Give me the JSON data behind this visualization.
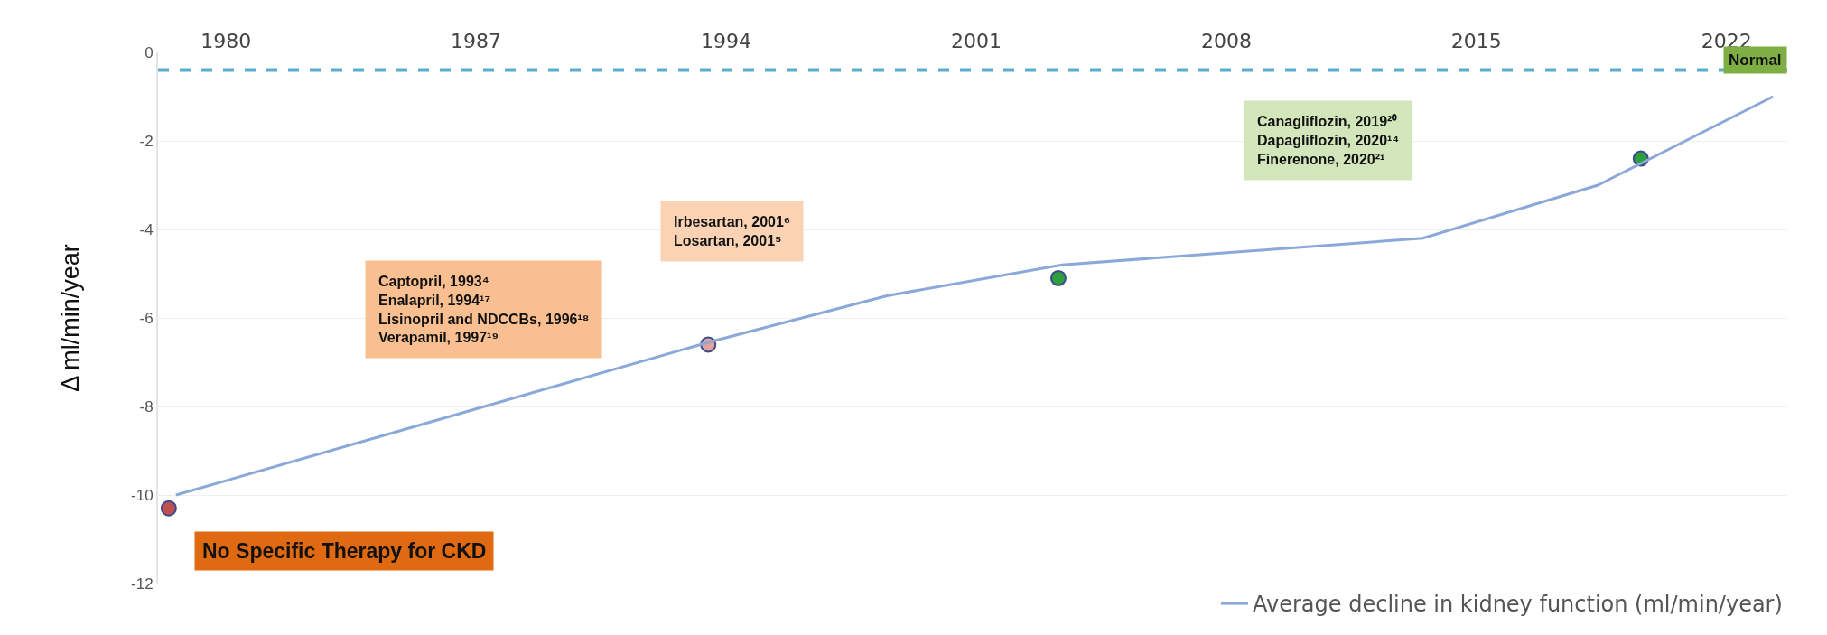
{
  "chart_data": {
    "type": "line",
    "ylabel": "Δ ml/min/year",
    "xlim": [
      1978.1,
      2023.7
    ],
    "xticks": [
      1980,
      1987,
      1994,
      2001,
      2008,
      2015,
      2022
    ],
    "ylim": [
      -12,
      0
    ],
    "yticks": [
      0,
      -2,
      -4,
      -6,
      -8,
      -10,
      -12
    ],
    "grid": "y",
    "legend": "bottom right",
    "marker": "none",
    "line_style": "solid",
    "series": [
      {
        "name": "Average decline in kidney function (ml/min/year)",
        "color": "#8aa8d8",
        "x": [
          1978.6,
          1993.5,
          1998.5,
          2003.4,
          2013.5,
          2018.4,
          2023.3
        ],
        "values": [
          -10.0,
          -6.55,
          -5.5,
          -4.8,
          -4.2,
          -3.0,
          -1.0
        ]
      },
      {
        "type": "scatter",
        "marker": "circle",
        "x": [
          1978.4,
          1993.5,
          2003.3,
          2019.6
        ],
        "values": [
          -10.3,
          -6.6,
          -5.1,
          -2.4
        ],
        "colors": [
          "#c0504d",
          "#e8a09a",
          "#2e9e3e",
          "#2e9e3e"
        ]
      }
    ],
    "ref_lines": [
      {
        "axis": "y",
        "value": -0.4,
        "label": "Normal",
        "color": "#5aaecc",
        "line_style": "dashed"
      }
    ],
    "annotations": [
      "No Specific Therapy for CKD",
      "Captopril, 1993⁴\nEnalapril, 1994¹⁷\nLisinopril and NDCCBs, 1996¹⁸\nVerapamil, 1997¹⁹",
      "Irbesartan, 2001⁶\nLosartan, 2001⁵",
      "Canagliflozin, 2019²⁰\nDapagliflozin, 2020¹⁴\nFinerenone, 2020²¹"
    ]
  }
}
